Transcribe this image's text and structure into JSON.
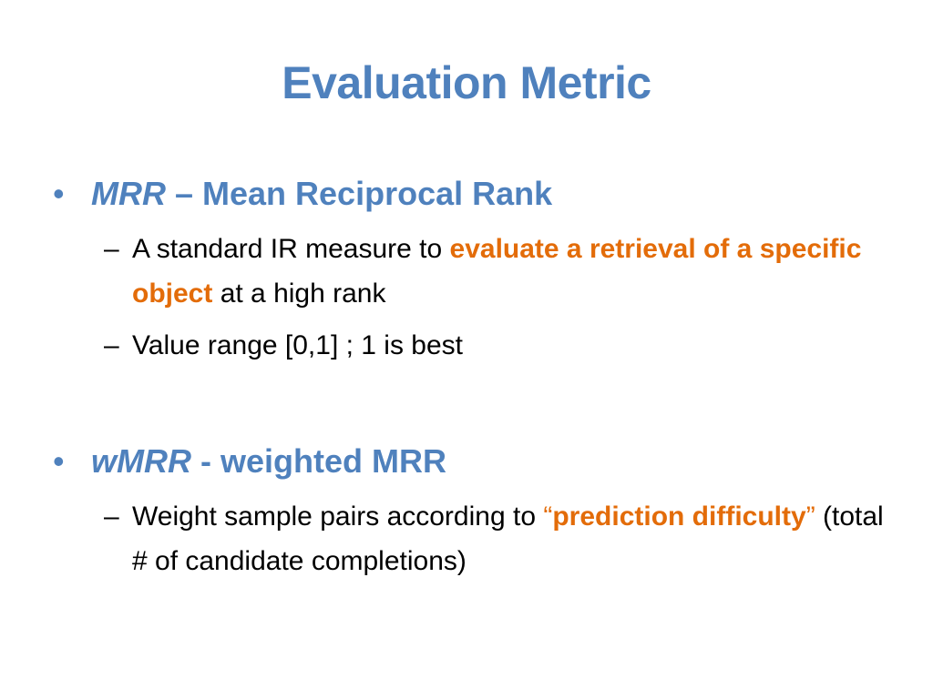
{
  "slide": {
    "title": "Evaluation Metric",
    "bullets": [
      {
        "term": "MRR",
        "separator": " – ",
        "heading": "Mean Reciprocal Rank",
        "subbullets": [
          {
            "text_a": "A standard IR measure to ",
            "highlight": "evaluate a retrieval of a specific object",
            "text_b": " at a high rank"
          },
          {
            "text": "Value range [0,1] ; 1 is best"
          }
        ]
      },
      {
        "term": "wMRR",
        "separator": " - ",
        "heading": "weighted MRR",
        "subbullets": [
          {
            "text_a": "Weight sample pairs according to ",
            "open_quote": "“",
            "highlight": "prediction difficulty",
            "close_quote": "”",
            "text_b": " (total # of candidate completions)"
          }
        ]
      }
    ],
    "bullet_symbol": "•",
    "dash_symbol": "–"
  },
  "colors": {
    "title": "#4f81bd",
    "accent_blue": "#4f81bd",
    "highlight_orange": "#e36c09",
    "text": "#000000"
  }
}
